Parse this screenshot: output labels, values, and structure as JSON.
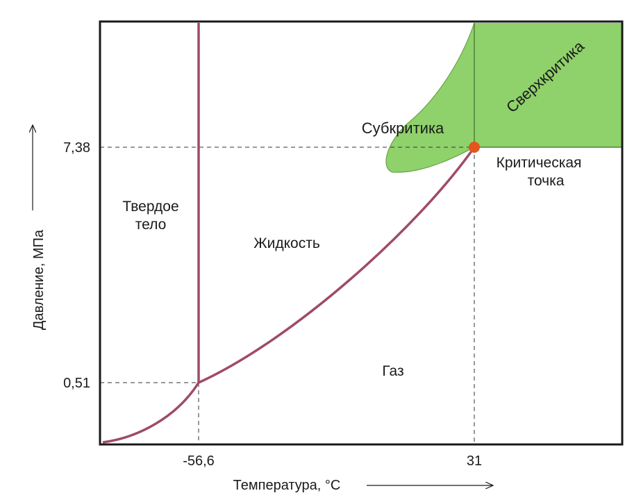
{
  "colors": {
    "curve": "#a04a68",
    "supercritical_fill": "#8fd16b",
    "frame": "#1a1a1a",
    "critical_point": "#e2551c",
    "guide_lines": "#333333"
  },
  "axes": {
    "x_title": "Температура, °C",
    "y_title": "Давление, МПа",
    "x_ticks": [
      "-56,6",
      "31"
    ],
    "y_ticks": [
      "7,38",
      "0,51"
    ]
  },
  "regions": {
    "solid_line1": "Твердое",
    "solid_line2": "тело",
    "liquid": "Жидкость",
    "gas": "Газ",
    "subcritical": "Субкритика",
    "supercritical": "Сверхкритика",
    "critical_line1": "Критическая",
    "critical_line2": "точка"
  },
  "points": {
    "triple": {
      "temperature": -56.6,
      "pressure": 0.51
    },
    "critical": {
      "temperature": 31,
      "pressure": 7.38
    }
  }
}
